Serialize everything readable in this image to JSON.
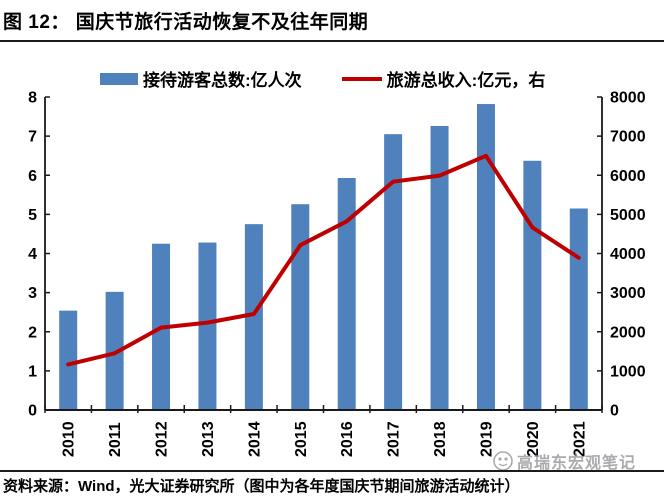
{
  "header": {
    "title": "图 12：  国庆节旅行活动恢复不及往年同期"
  },
  "legend": {
    "items": [
      {
        "label": "接待游客总数:亿人次",
        "type": "bar",
        "color": "#4F81BD"
      },
      {
        "label": "旅游总收入:亿元，右",
        "type": "line",
        "color": "#C00000"
      }
    ]
  },
  "chart_data": {
    "type": "bar+line combo",
    "categories": [
      "2010",
      "2011",
      "2012",
      "2013",
      "2014",
      "2015",
      "2016",
      "2017",
      "2018",
      "2019",
      "2020",
      "2021"
    ],
    "series": [
      {
        "name": "接待游客总数:亿人次",
        "type": "bar",
        "axis": "left",
        "color": "#4F81BD",
        "values": [
          2.54,
          3.02,
          4.25,
          4.28,
          4.75,
          5.26,
          5.93,
          7.05,
          7.26,
          7.82,
          6.37,
          5.15
        ]
      },
      {
        "name": "旅游总收入:亿元，右",
        "type": "line",
        "axis": "right",
        "color": "#C00000",
        "values": [
          1166,
          1450,
          2105,
          2233,
          2454,
          4213,
          4822,
          5836,
          5991,
          6497,
          4666,
          3891
        ]
      }
    ],
    "left_axis": {
      "min": 0,
      "max": 8,
      "step": 1
    },
    "right_axis": {
      "min": 0,
      "max": 8000,
      "step": 1000
    },
    "grid": false,
    "legend_position": "top",
    "axis_color": "#1a1a1a",
    "label_color": "#000000"
  },
  "watermark": {
    "text": "高瑞东宏观笔记"
  },
  "footer": {
    "source": "资料来源：Wind，光大证券研究所（图中为各年度国庆节期间旅游活动统计）"
  }
}
